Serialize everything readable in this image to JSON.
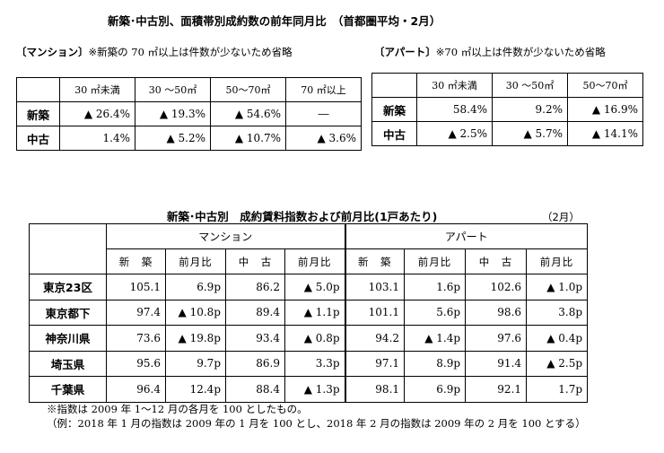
{
  "page_title": "新築･中古別、面積帯別成約数の前年同月比　（首都圏平均・2月）",
  "mansion_note": {
    "label": "〔マンション〕",
    "text": "※新築の 70 ㎡以上は件数が少ないため省略"
  },
  "apart_note": {
    "label": "〔アパート〕",
    "text": "※70 ㎡以上は件数が少ないため省略"
  },
  "area_table_mansion": {
    "headers": [
      "30 ㎡未満",
      "30 ～50㎡",
      "50～70㎡",
      "70 ㎡以上"
    ],
    "rows": [
      {
        "label": "新築",
        "cells": [
          "▲ 26.4%",
          "▲ 19.3%",
          "▲ 54.6%",
          "―"
        ]
      },
      {
        "label": "中古",
        "cells": [
          "1.4%",
          "▲ 5.2%",
          "▲ 10.7%",
          "▲ 3.6%"
        ]
      }
    ]
  },
  "area_table_apart": {
    "headers": [
      "30 ㎡未満",
      "30 ～50㎡",
      "50～70㎡"
    ],
    "rows": [
      {
        "label": "新築",
        "cells": [
          "58.4%",
          "9.2%",
          "▲ 16.9%"
        ]
      },
      {
        "label": "中古",
        "cells": [
          "▲ 2.5%",
          "▲ 5.7%",
          "▲ 14.1%"
        ]
      }
    ]
  },
  "rent_table": {
    "title": "新築･中古別　成約賃料指数および前月比(1戸あたり)",
    "period": "（2月）",
    "groups": [
      "マンション",
      "アパート"
    ],
    "subheaders": [
      "新　築",
      "前月比",
      "中　古",
      "前月比",
      "新　築",
      "前月比",
      "中　古",
      "前月比"
    ],
    "rows": [
      {
        "label": "東京23区",
        "cells": [
          "105.1",
          "6.9p",
          "86.2",
          "▲ 5.0p",
          "103.1",
          "1.6p",
          "102.6",
          "▲ 1.0p"
        ]
      },
      {
        "label": "東京都下",
        "cells": [
          "97.4",
          "▲ 10.8p",
          "89.4",
          "▲ 1.1p",
          "101.1",
          "5.6p",
          "98.6",
          "3.8p"
        ]
      },
      {
        "label": "神奈川県",
        "cells": [
          "73.6",
          "▲ 19.8p",
          "93.4",
          "▲ 0.8p",
          "94.2",
          "▲ 1.4p",
          "97.6",
          "▲ 0.4p"
        ]
      },
      {
        "label": "埼玉県",
        "cells": [
          "95.6",
          "9.7p",
          "86.9",
          "3.3p",
          "97.1",
          "8.9p",
          "91.4",
          "▲ 2.5p"
        ]
      },
      {
        "label": "千葉県",
        "cells": [
          "96.4",
          "12.4p",
          "88.4",
          "▲ 1.3p",
          "98.1",
          "6.9p",
          "92.1",
          "1.7p"
        ]
      }
    ]
  },
  "footnotes": [
    "※指数は 2009 年 1～12 月の各月を 100 としたもの。",
    "（例：2018 年 1 月の指数は 2009 年の 1 月を 100 とし、2018 年 2 月の指数は 2009 年の 2 月を 100 とする）"
  ]
}
